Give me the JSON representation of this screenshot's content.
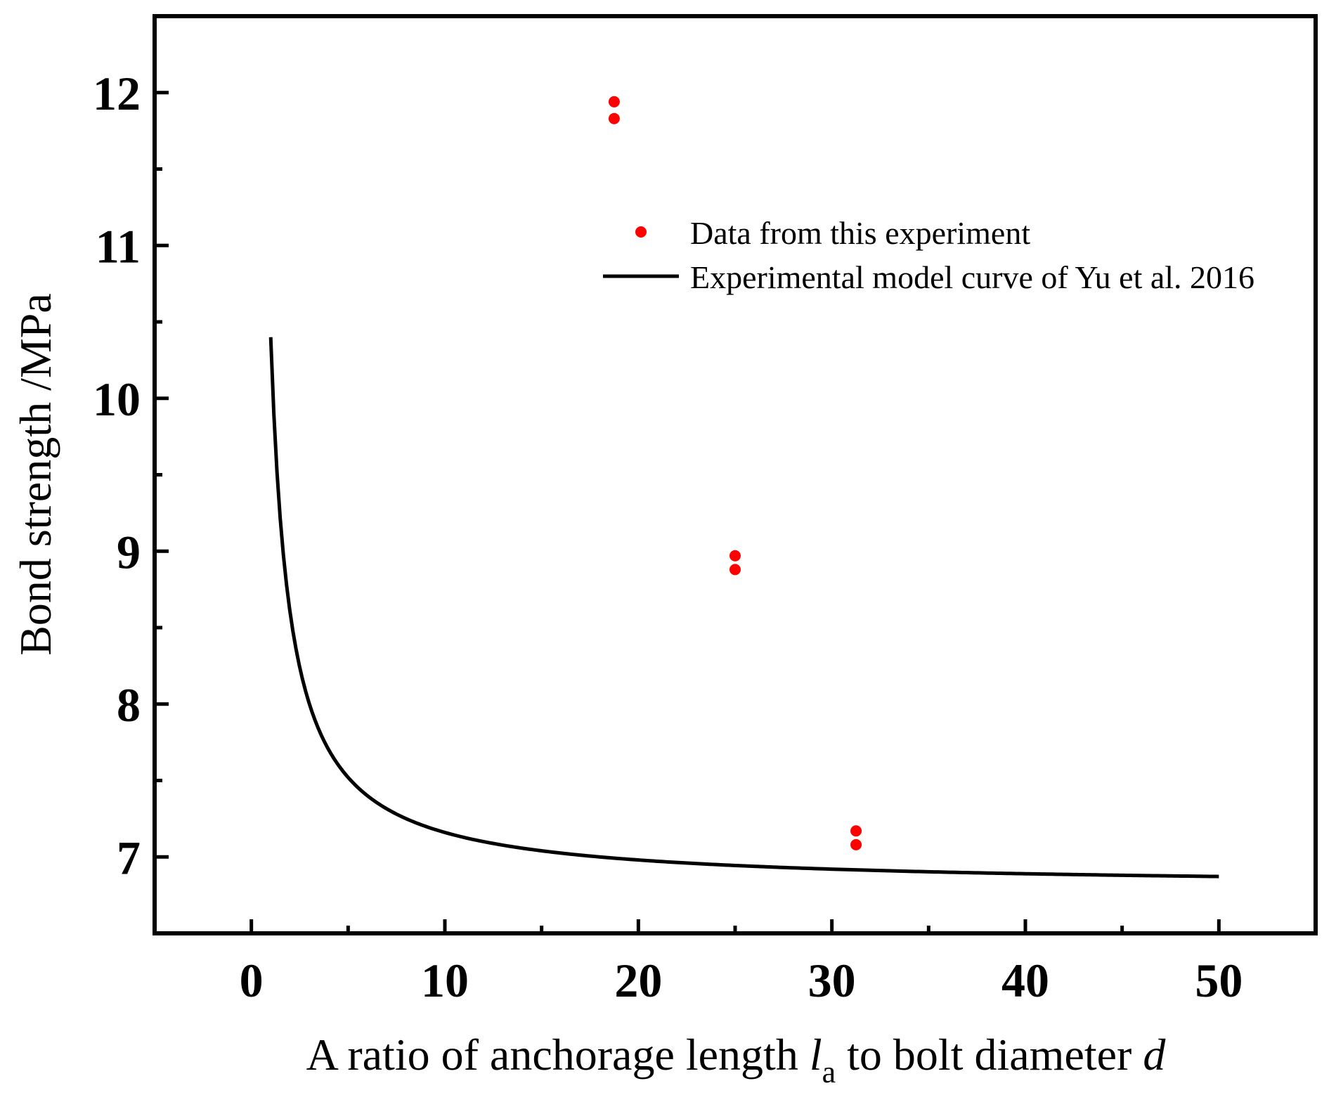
{
  "chart_data": {
    "type": "scatter",
    "title": "",
    "xlabel": {
      "prefix": "A ratio of anchorage length ",
      "var": "l",
      "sub": "a",
      "mid": " to bolt diameter ",
      "var2": "d"
    },
    "ylabel": "Bond strength /MPa",
    "xlim": [
      -5,
      55
    ],
    "ylim": [
      6.5,
      12.5
    ],
    "x_ticks": [
      0,
      10,
      20,
      30,
      40,
      50
    ],
    "y_ticks": [
      7,
      8,
      9,
      10,
      11,
      12
    ],
    "x_minor_ticks": [
      5,
      15,
      25,
      35,
      45
    ],
    "y_minor_ticks": [
      7.5,
      8.5,
      9.5,
      10.5,
      11.5
    ],
    "legend_position": "top-right",
    "series": [
      {
        "name": "Data from this experiment",
        "kind": "scatter",
        "color": "#ff0000",
        "points": [
          {
            "x": 18.75,
            "y": 11.94
          },
          {
            "x": 18.75,
            "y": 11.83
          },
          {
            "x": 25,
            "y": 8.97
          },
          {
            "x": 25,
            "y": 8.88
          },
          {
            "x": 31.25,
            "y": 7.17
          },
          {
            "x": 31.25,
            "y": 7.08
          }
        ]
      },
      {
        "name": "Experimental model curve of Yu et al. 2016",
        "kind": "line",
        "color": "#000000",
        "x_range": [
          1,
          50
        ],
        "model": {
          "a": 6.8,
          "b": 3.6,
          "power": 1
        }
      }
    ]
  }
}
